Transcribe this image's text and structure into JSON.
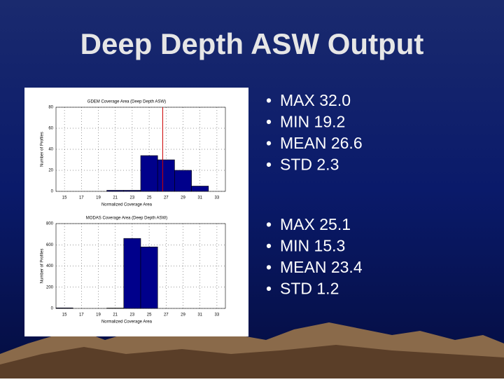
{
  "slide": {
    "title": "Deep Depth ASW Output",
    "bullets": [
      [
        "MAX 32.0",
        "MIN 19.2",
        "MEAN 26.6",
        "STD 2.3"
      ],
      [
        "MAX 25.1",
        "MIN 15.3",
        "MEAN 23.4",
        "STD 1.2"
      ]
    ]
  },
  "chart_data": [
    {
      "type": "histogram",
      "title": "GDEM Coverage Area (Deep Depth ASW)",
      "x_label": "Normalized Coverage Area",
      "y_label": "Number of Profiles",
      "bins": [
        20,
        22,
        24,
        26,
        28,
        30,
        32
      ],
      "values": [
        1,
        1,
        34,
        30,
        20,
        5
      ],
      "color": "#00008b",
      "xlim": [
        14,
        34
      ],
      "xticks": [
        15,
        17,
        19,
        21,
        23,
        25,
        27,
        29,
        31,
        33
      ],
      "ylim": [
        0,
        80
      ],
      "yticks": [
        0,
        20,
        40,
        60,
        80
      ],
      "grid": true,
      "vline": 26.6,
      "vline_color": "#cc0000"
    },
    {
      "type": "histogram",
      "title": "MODAS Coverage Area (Deep Depth ASW)",
      "x_label": "Normalized Coverage Area",
      "y_label": "Number of Profiles",
      "bins": [
        14,
        16,
        18,
        20,
        22,
        24,
        26
      ],
      "values": [
        5,
        0,
        0,
        3,
        660,
        580
      ],
      "color": "#00008b",
      "xlim": [
        14,
        34
      ],
      "xticks": [
        15,
        17,
        19,
        21,
        23,
        25,
        27,
        29,
        31,
        33
      ],
      "ylim": [
        0,
        800
      ],
      "yticks": [
        0,
        200,
        400,
        600,
        800
      ],
      "grid": true
    }
  ]
}
